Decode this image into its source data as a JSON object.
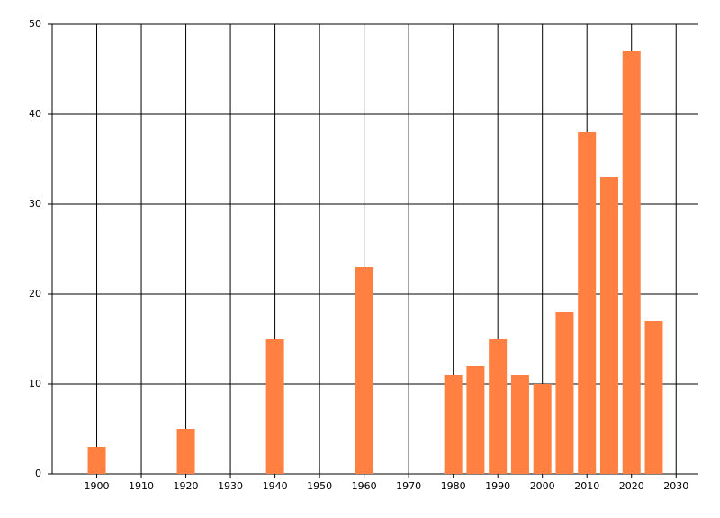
{
  "chart_data": {
    "type": "bar",
    "x": [
      1900,
      1920,
      1940,
      1960,
      1980,
      1985,
      1990,
      1995,
      2000,
      2005,
      2010,
      2015,
      2020,
      2025
    ],
    "values": [
      3,
      5,
      15,
      23,
      11,
      12,
      15,
      11,
      10,
      18,
      38,
      33,
      47,
      17
    ],
    "color": "#ff8040",
    "xlim": [
      1890,
      2035
    ],
    "xticks": [
      1900,
      1910,
      1920,
      1930,
      1940,
      1950,
      1960,
      1970,
      1980,
      1990,
      2000,
      2010,
      2020,
      2030
    ],
    "ylim": [
      0,
      50
    ],
    "yticks": [
      0,
      10,
      20,
      30,
      40,
      50
    ],
    "grid": true
  }
}
